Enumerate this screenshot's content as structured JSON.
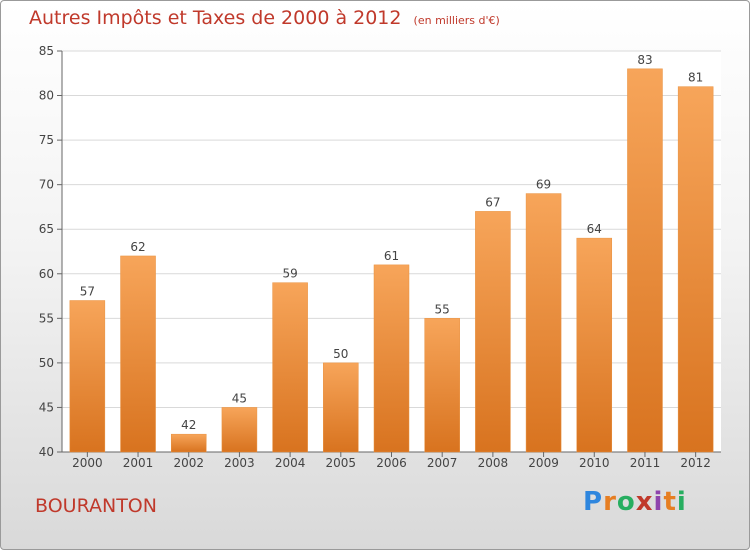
{
  "header": {
    "title": "Autres Impôts et Taxes de 2000 à 2012",
    "subtitle": "(en milliers d'€)"
  },
  "footer": {
    "place": "BOURANTON",
    "brand": "Proxiti",
    "brand_colors": [
      "#2e86de",
      "#e67e22",
      "#27ae60",
      "#c0392b",
      "#8e44ad",
      "#e67e22",
      "#27ae60"
    ]
  },
  "colors": {
    "bar_light": "#f7a55a",
    "bar_dark": "#d8731f",
    "title": "#c0392b"
  },
  "chart_data": {
    "type": "bar",
    "categories": [
      "2000",
      "2001",
      "2002",
      "2003",
      "2004",
      "2005",
      "2006",
      "2007",
      "2008",
      "2009",
      "2010",
      "2011",
      "2012"
    ],
    "values": [
      57,
      62,
      42,
      45,
      59,
      50,
      61,
      55,
      67,
      69,
      64,
      83,
      81
    ],
    "title": "Autres Impôts et Taxes de 2000 à 2012",
    "subtitle": "(en milliers d'€)",
    "ylim": [
      40,
      85
    ],
    "yticks": [
      40,
      45,
      50,
      55,
      60,
      65,
      70,
      75,
      80,
      85
    ],
    "grid": true,
    "data_labels": true
  }
}
